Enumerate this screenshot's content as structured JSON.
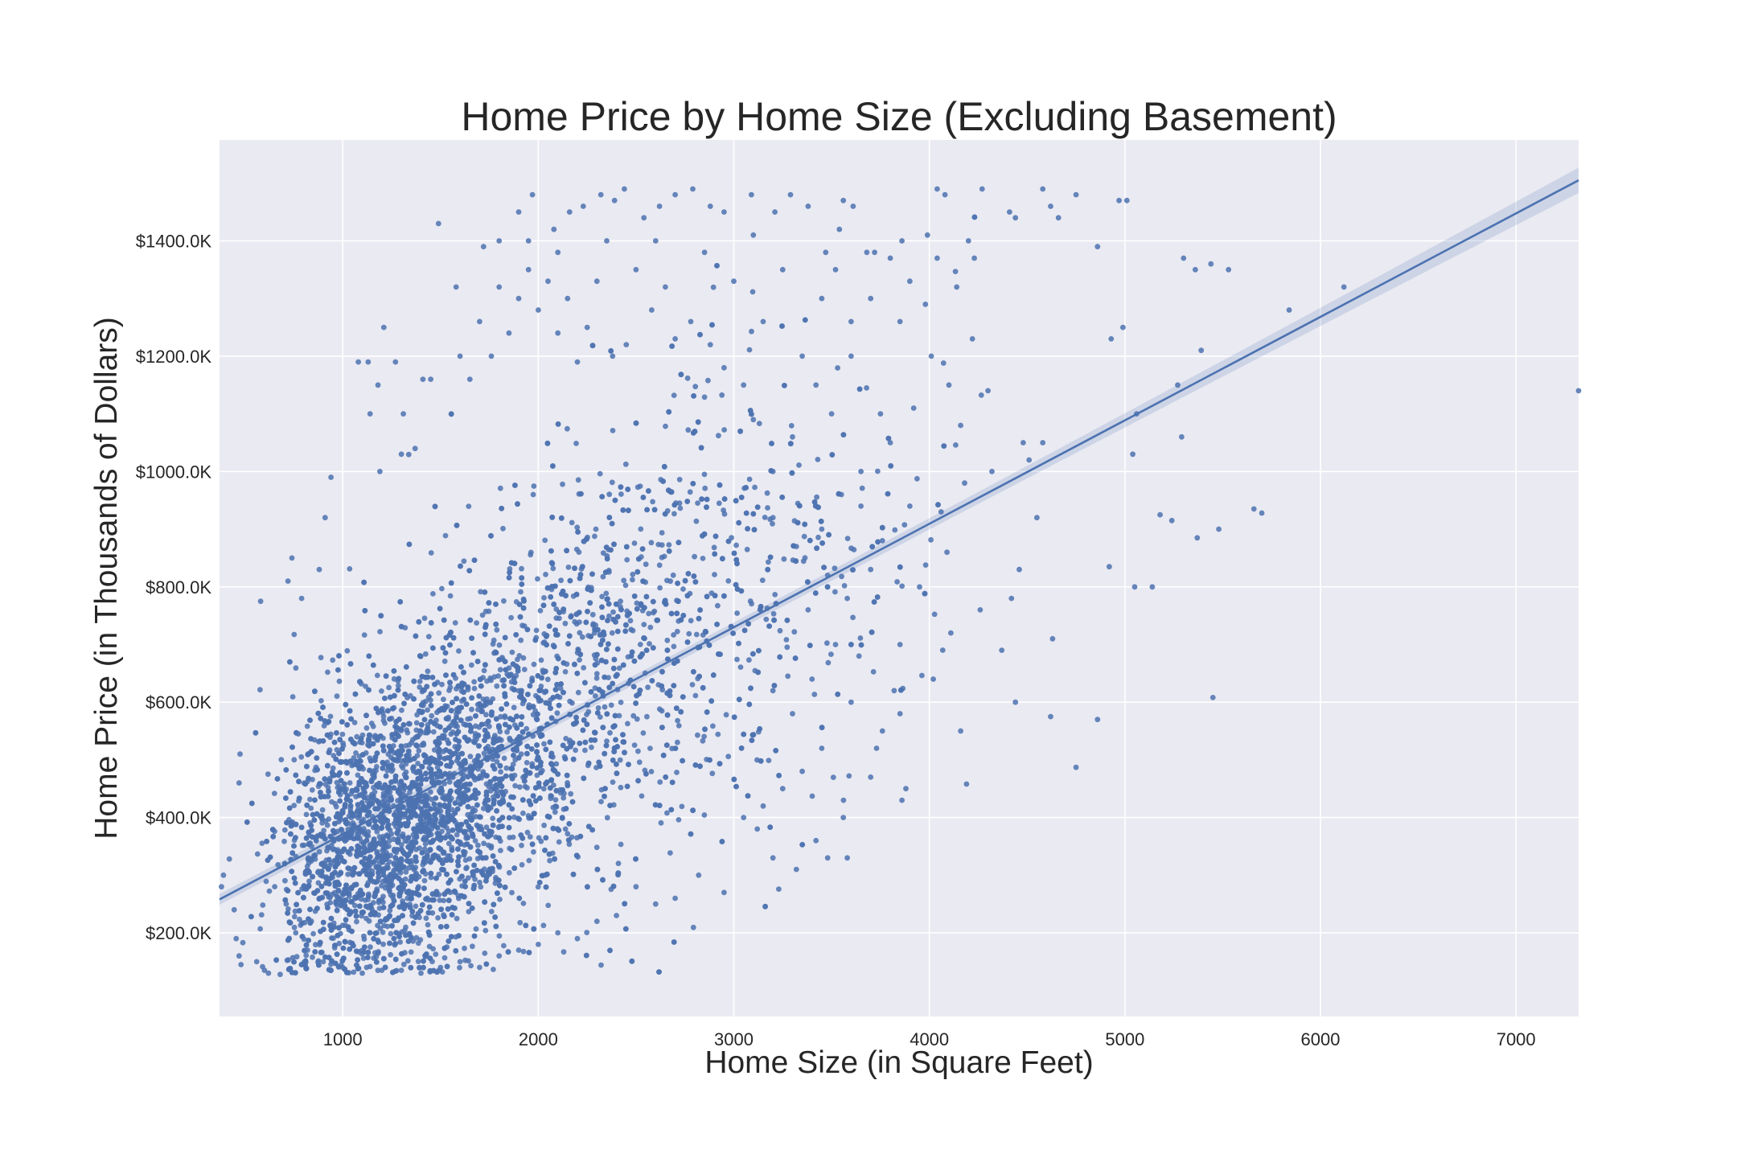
{
  "chart_data": {
    "type": "scatter",
    "title": "Home Price by Home Size (Excluding Basement)",
    "xlabel": "Home Size (in Square Feet)",
    "ylabel": "Home Price (in Thousands of Dollars)",
    "xlim": [
      370,
      7320
    ],
    "ylim": [
      55,
      1575
    ],
    "x_ticks": [
      1000,
      2000,
      3000,
      4000,
      5000,
      6000,
      7000
    ],
    "x_tick_labels": [
      "1000",
      "2000",
      "3000",
      "4000",
      "5000",
      "6000",
      "7000"
    ],
    "y_ticks": [
      200,
      400,
      600,
      800,
      1000,
      1200,
      1400
    ],
    "y_tick_labels": [
      "$200.0K",
      "$400.0K",
      "$600.0K",
      "$800.0K",
      "$1000.0K",
      "$1200.0K",
      "$1400.0K"
    ],
    "grid": true,
    "legend": false,
    "colors": {
      "background": "#eaeaf2",
      "grid": "#ffffff",
      "points": "#4c72b0",
      "trend_line": "#4c72b0",
      "confidence_band": "#4c72b0"
    },
    "trend_line": {
      "x": [
        370,
        7320
      ],
      "y": [
        258,
        1505
      ],
      "confidence_half_width_at_ends": [
        8,
        22
      ]
    },
    "points": [
      [
        7320,
        1140
      ],
      [
        5450,
        608
      ],
      [
        4750,
        487
      ],
      [
        4860,
        570
      ],
      [
        4620,
        575
      ],
      [
        4440,
        600
      ],
      [
        4190,
        458
      ],
      [
        5700,
        928
      ],
      [
        5660,
        935
      ],
      [
        5480,
        900
      ],
      [
        5370,
        885
      ],
      [
        5240,
        915
      ],
      [
        5180,
        925
      ],
      [
        5050,
        800
      ],
      [
        5140,
        800
      ],
      [
        4920,
        835
      ],
      [
        5840,
        1280
      ],
      [
        6120,
        1320
      ],
      [
        5530,
        1350
      ],
      [
        5440,
        1360
      ],
      [
        5300,
        1370
      ],
      [
        5360,
        1350
      ],
      [
        5270,
        1150
      ],
      [
        5390,
        1210
      ],
      [
        5290,
        1060
      ],
      [
        5060,
        1100
      ],
      [
        5040,
        1030
      ],
      [
        4970,
        1470
      ],
      [
        5010,
        1470
      ],
      [
        4860,
        1390
      ],
      [
        4750,
        1480
      ],
      [
        4580,
        1490
      ],
      [
        4620,
        1460
      ],
      [
        4660,
        1440
      ],
      [
        4440,
        1440
      ],
      [
        4270,
        1490
      ],
      [
        4410,
        1450
      ],
      [
        4080,
        1480
      ],
      [
        4040,
        1490
      ],
      [
        3990,
        1410
      ],
      [
        3860,
        1400
      ],
      [
        4990,
        1250
      ],
      [
        4930,
        1230
      ],
      [
        4580,
        1050
      ],
      [
        4480,
        1050
      ],
      [
        4510,
        1020
      ],
      [
        4550,
        920
      ],
      [
        4460,
        830
      ],
      [
        4420,
        780
      ],
      [
        4370,
        690
      ],
      [
        4630,
        710
      ],
      [
        4260,
        760
      ],
      [
        4300,
        1140
      ],
      [
        4220,
        1230
      ],
      [
        4140,
        1320
      ],
      [
        4230,
        1370
      ],
      [
        4200,
        1400
      ],
      [
        4040,
        1370
      ],
      [
        3900,
        1330
      ],
      [
        3980,
        1290
      ],
      [
        4010,
        1200
      ],
      [
        3850,
        1260
      ],
      [
        3920,
        1110
      ],
      [
        3720,
        1380
      ],
      [
        3680,
        1380
      ],
      [
        3610,
        1460
      ],
      [
        3560,
        1470
      ],
      [
        3540,
        1420
      ],
      [
        3520,
        1350
      ],
      [
        3470,
        1380
      ],
      [
        3380,
        1460
      ],
      [
        3290,
        1480
      ],
      [
        3210,
        1450
      ],
      [
        3090,
        1480
      ],
      [
        2950,
        1450
      ],
      [
        2880,
        1460
      ],
      [
        2790,
        1490
      ],
      [
        2700,
        1480
      ],
      [
        2620,
        1460
      ],
      [
        2540,
        1440
      ],
      [
        2440,
        1490
      ],
      [
        2390,
        1470
      ],
      [
        2320,
        1480
      ],
      [
        2230,
        1460
      ],
      [
        2160,
        1450
      ],
      [
        2080,
        1420
      ],
      [
        1970,
        1480
      ],
      [
        1900,
        1450
      ],
      [
        1800,
        1400
      ],
      [
        1720,
        1390
      ],
      [
        1490,
        1430
      ],
      [
        1580,
        1320
      ],
      [
        1210,
        1250
      ],
      [
        1270,
        1190
      ],
      [
        1130,
        1190
      ],
      [
        1080,
        1190
      ],
      [
        1140,
        1100
      ],
      [
        1180,
        1150
      ],
      [
        1310,
        1100
      ],
      [
        1410,
        1160
      ],
      [
        1450,
        1160
      ],
      [
        1370,
        1040
      ],
      [
        1300,
        1030
      ],
      [
        1190,
        1000
      ],
      [
        940,
        990
      ],
      [
        910,
        920
      ],
      [
        880,
        830
      ],
      [
        740,
        850
      ],
      [
        720,
        810
      ],
      [
        790,
        780
      ],
      [
        580,
        775
      ],
      [
        475,
        510
      ],
      [
        470,
        460
      ],
      [
        420,
        328
      ],
      [
        390,
        300
      ],
      [
        380,
        280
      ],
      [
        445,
        240
      ],
      [
        455,
        190
      ],
      [
        470,
        160
      ],
      [
        480,
        145
      ],
      [
        560,
        150
      ],
      [
        600,
        135
      ],
      [
        620,
        130
      ],
      [
        680,
        128
      ],
      [
        3350,
        1200
      ],
      [
        3420,
        1150
      ],
      [
        3600,
        1200
      ],
      [
        3500,
        1100
      ],
      [
        3750,
        1100
      ],
      [
        3800,
        1050
      ],
      [
        3650,
        1000
      ],
      [
        3300,
        1060
      ],
      [
        3200,
        1000
      ],
      [
        3100,
        1090
      ],
      [
        3050,
        1150
      ],
      [
        2950,
        1180
      ],
      [
        2880,
        1220
      ],
      [
        2780,
        1260
      ],
      [
        2700,
        1230
      ],
      [
        2650,
        1320
      ],
      [
        2580,
        1280
      ],
      [
        2500,
        1350
      ],
      [
        2450,
        1220
      ],
      [
        2380,
        1200
      ],
      [
        2300,
        1330
      ],
      [
        2250,
        1250
      ],
      [
        2200,
        1190
      ],
      [
        2150,
        1300
      ],
      [
        2100,
        1240
      ],
      [
        2050,
        1330
      ],
      [
        2000,
        1280
      ],
      [
        1950,
        1350
      ],
      [
        1900,
        1300
      ],
      [
        1850,
        1240
      ],
      [
        1800,
        1320
      ],
      [
        1760,
        1200
      ],
      [
        1700,
        1260
      ],
      [
        1650,
        1160
      ],
      [
        1600,
        1200
      ],
      [
        3700,
        1300
      ],
      [
        3600,
        1260
      ],
      [
        3450,
        1300
      ],
      [
        3250,
        1350
      ],
      [
        3150,
        1260
      ],
      [
        3000,
        1330
      ],
      [
        2850,
        1380
      ],
      [
        2600,
        1400
      ],
      [
        2350,
        1400
      ],
      [
        2100,
        1380
      ],
      [
        1950,
        1400
      ],
      [
        3100,
        1410
      ],
      [
        3800,
        1370
      ],
      [
        4100,
        1150
      ],
      [
        4160,
        1080
      ],
      [
        4320,
        1000
      ],
      [
        4180,
        980
      ],
      [
        4060,
        930
      ],
      [
        4090,
        860
      ],
      [
        3950,
        800
      ],
      [
        4110,
        720
      ],
      [
        4020,
        640
      ],
      [
        4160,
        550
      ],
      [
        3850,
        580
      ],
      [
        3820,
        620
      ],
      [
        3760,
        550
      ],
      [
        3880,
        450
      ],
      [
        3860,
        430
      ],
      [
        3700,
        470
      ],
      [
        3560,
        400
      ],
      [
        3480,
        330
      ],
      [
        3580,
        330
      ],
      [
        3420,
        360
      ],
      [
        3320,
        310
      ],
      [
        3200,
        330
      ],
      [
        3120,
        380
      ],
      [
        2950,
        270
      ],
      [
        2820,
        300
      ],
      [
        2700,
        260
      ],
      [
        2600,
        250
      ],
      [
        2500,
        280
      ],
      [
        2400,
        230
      ],
      [
        2300,
        220
      ],
      [
        2200,
        190
      ],
      [
        2100,
        200
      ],
      [
        2000,
        180
      ],
      [
        1900,
        170
      ],
      [
        1800,
        160
      ],
      [
        1700,
        140
      ],
      [
        1600,
        150
      ],
      [
        1500,
        140
      ],
      [
        1400,
        130
      ],
      [
        1300,
        135
      ],
      [
        1200,
        135
      ],
      [
        1100,
        130
      ],
      [
        1000,
        140
      ],
      [
        900,
        150
      ],
      [
        820,
        170
      ],
      [
        760,
        200
      ],
      [
        3200,
        920
      ],
      [
        3320,
        870
      ],
      [
        3450,
        900
      ],
      [
        3550,
        960
      ],
      [
        3650,
        940
      ],
      [
        3480,
        820
      ],
      [
        3380,
        760
      ],
      [
        3580,
        780
      ],
      [
        3700,
        830
      ],
      [
        3760,
        880
      ],
      [
        3900,
        940
      ],
      [
        3850,
        700
      ],
      [
        3640,
        680
      ],
      [
        3520,
        700
      ],
      [
        3400,
        640
      ],
      [
        3300,
        580
      ],
      [
        3200,
        620
      ],
      [
        3600,
        600
      ],
      [
        3730,
        520
      ],
      [
        3450,
        520
      ],
      [
        3350,
        480
      ],
      [
        3250,
        450
      ],
      [
        3150,
        420
      ],
      [
        3050,
        400
      ]
    ]
  }
}
